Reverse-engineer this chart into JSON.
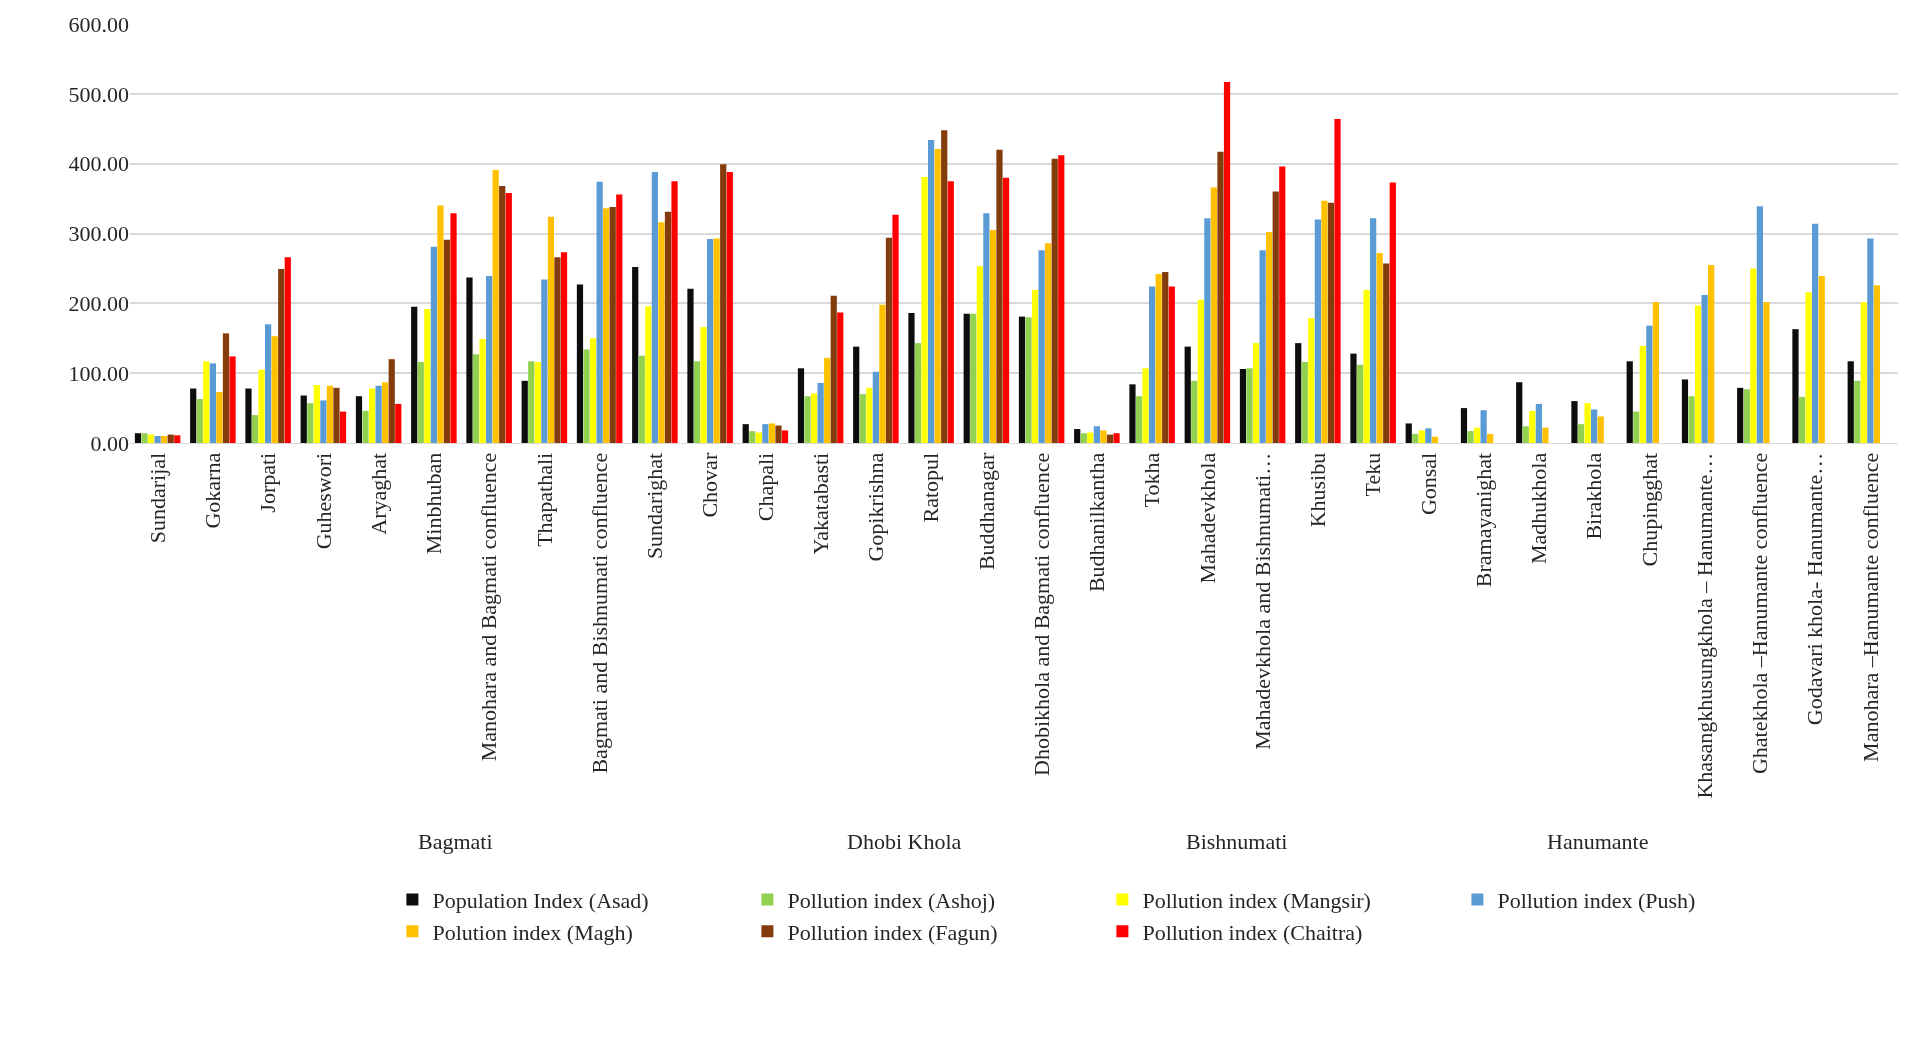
{
  "chart_data": {
    "type": "bar",
    "categories": [
      "Sundarijal",
      "Gokarna",
      "Jorpati",
      "Guheswori",
      "Aryaghat",
      "Minbhuban",
      "Manohara and Bagmati confluence",
      "Thapathali",
      "Bagmati and Bishnumati confluence",
      "Sundarighat",
      "Chovar",
      "Chapali",
      "Yakatabasti",
      "Gopikrishna",
      "Ratopul",
      "Buddhanagar",
      "Dhobikhola and Bagmati confluence",
      "Budhanilkantha",
      "Tokha",
      "Mahadevkhola",
      "Mahadevkhola and Bishnumati…",
      "Khusibu",
      "Teku",
      "Gonsal",
      "Bramayanighat",
      "Madhukhola",
      "Birakhola",
      "Chupingghat",
      "Khasangkhusungkhola – Hanumante…",
      "Ghatekhola –Hanumante confluence",
      "Godavari khola- Hanumante…",
      "Manohara –Hanumante confluence"
    ],
    "series": [
      {
        "name": "Population Index (Asad)",
        "color": "#0d0d0d",
        "values": [
          14,
          78,
          78,
          68,
          67,
          195,
          237,
          89,
          227,
          252,
          221,
          27,
          107,
          138,
          186,
          185,
          181,
          20,
          84,
          138,
          106,
          143,
          128,
          28,
          50,
          87,
          60,
          117,
          91,
          79,
          163,
          117
        ]
      },
      {
        "name": "Pollution index (Ashoj)",
        "color": "#92d050",
        "values": [
          14,
          63,
          40,
          57,
          46,
          116,
          127,
          117,
          134,
          125,
          117,
          17,
          67,
          70,
          143,
          185,
          180,
          14,
          67,
          89,
          107,
          116,
          112,
          13,
          17,
          24,
          27,
          45,
          67,
          77,
          66,
          89
        ]
      },
      {
        "name": "Pollution index (Mangsir)",
        "color": "#ffff00",
        "values": [
          12,
          117,
          105,
          83,
          78,
          192,
          149,
          116,
          150,
          196,
          166,
          15,
          71,
          79,
          381,
          253,
          219,
          15,
          107,
          205,
          143,
          179,
          219,
          18,
          22,
          46,
          57,
          139,
          197,
          250,
          216,
          202
        ]
      },
      {
        "name": "Pollution index (Push)",
        "color": "#5b9bd5",
        "values": [
          10,
          114,
          170,
          61,
          82,
          281,
          239,
          234,
          374,
          388,
          292,
          27,
          86,
          102,
          434,
          329,
          276,
          24,
          224,
          322,
          276,
          320,
          322,
          21,
          47,
          56,
          48,
          168,
          212,
          339,
          314,
          293
        ]
      },
      {
        "name": "Polution index (Magh)",
        "color": "#ffc000",
        "values": [
          10,
          73,
          153,
          82,
          87,
          340,
          391,
          324,
          336,
          316,
          293,
          28,
          122,
          198,
          421,
          305,
          286,
          18,
          242,
          366,
          302,
          347,
          272,
          9,
          13,
          22,
          38,
          202,
          255,
          202,
          239,
          226
        ]
      },
      {
        "name": "Pollution index (Fagun)",
        "color": "#843c0c",
        "values": [
          12,
          157,
          249,
          79,
          120,
          291,
          368,
          266,
          338,
          331,
          399,
          25,
          211,
          294,
          448,
          420,
          407,
          12,
          245,
          417,
          360,
          344,
          257,
          null,
          null,
          null,
          null,
          null,
          null,
          null,
          null,
          null
        ]
      },
      {
        "name": "Pollution index (Chaitra)",
        "color": "#ff0000",
        "values": [
          11,
          124,
          266,
          45,
          56,
          329,
          358,
          273,
          356,
          375,
          388,
          18,
          187,
          327,
          375,
          380,
          412,
          14,
          224,
          517,
          396,
          464,
          373,
          null,
          null,
          null,
          null,
          null,
          null,
          null,
          null,
          null
        ]
      }
    ],
    "ylim": [
      0,
      600
    ],
    "yticks": [
      {
        "value": 0,
        "label": "0.00"
      },
      {
        "value": 100,
        "label": "100.00"
      },
      {
        "value": 200,
        "label": "200.00"
      },
      {
        "value": 300,
        "label": "300.00"
      },
      {
        "value": 400,
        "label": "400.00"
      },
      {
        "value": 500,
        "label": "500.00"
      },
      {
        "value": 600,
        "label": "600.00"
      }
    ],
    "grid": "y",
    "legend": "bottom",
    "annotations": [
      "Bagmati",
      "Dhobi Khola",
      "Bishnumati",
      "Hanumante"
    ]
  }
}
